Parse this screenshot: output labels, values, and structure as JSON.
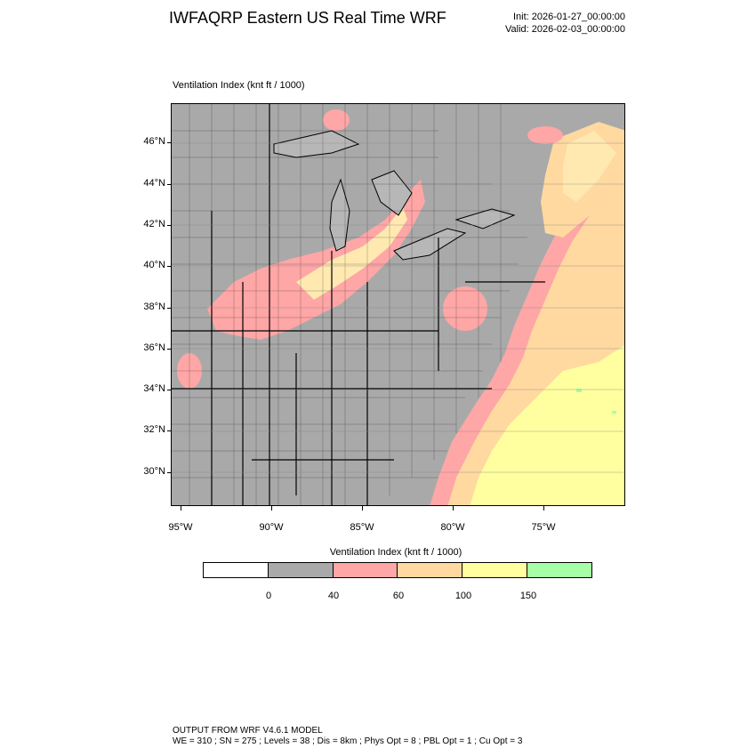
{
  "header": {
    "title": "IWFAQRP Eastern US Real Time WRF",
    "init": "Init: 2026-01-27_00:00:00",
    "valid": "Valid: 2026-02-03_00:00:00"
  },
  "plot": {
    "label": "Ventilation Index   (knt ft / 1000)"
  },
  "map": {
    "lat_labels": [
      "46°N",
      "44°N",
      "42°N",
      "40°N",
      "38°N",
      "36°N",
      "34°N",
      "32°N",
      "30°N"
    ],
    "lon_labels": [
      "95°W",
      "90°W",
      "85°W",
      "80°W",
      "75°W"
    ]
  },
  "colorbar": {
    "title": "Ventilation Index  (knt ft / 1000)",
    "levels": [
      "0",
      "40",
      "60",
      "100",
      "150"
    ],
    "colors": [
      "#ffffff",
      "#a9a9a9",
      "#ffa6a6",
      "#ffd9a0",
      "#ffff9f",
      "#a6ffa6"
    ]
  },
  "footer": {
    "line1": "OUTPUT FROM WRF V4.6.1 MODEL",
    "line2": "WE = 310 ; SN = 275 ; Levels = 38 ; Dis = 8km ; Phys Opt = 8 ; PBL Opt = 1 ; Cu Opt = 3"
  }
}
